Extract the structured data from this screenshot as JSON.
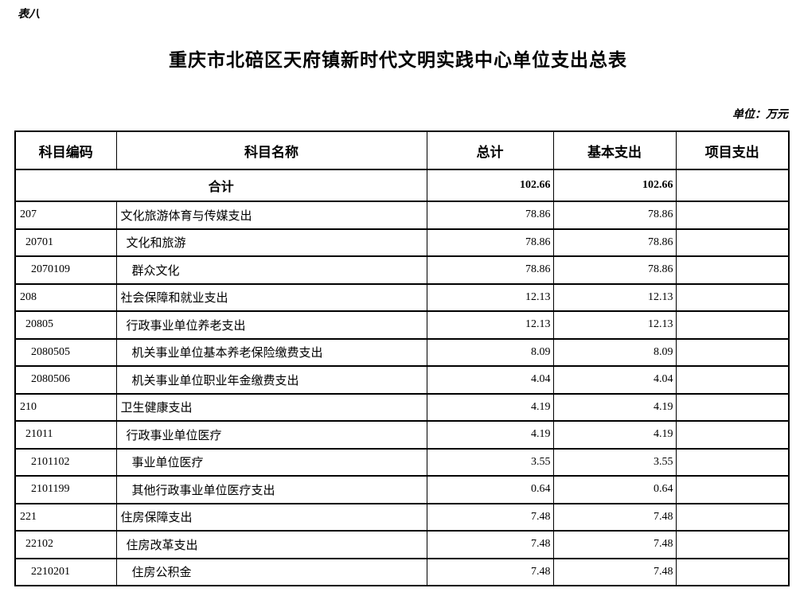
{
  "page": {
    "table_label": "表八",
    "title": "重庆市北碚区天府镇新时代文明实践中心单位支出总表",
    "unit_note": "单位：万元"
  },
  "table": {
    "columns": [
      "科目编码",
      "科目名称",
      "总计",
      "基本支出",
      "项目支出"
    ],
    "total_row": {
      "label": "合计",
      "total": "102.66",
      "basic": "102.66",
      "project": ""
    },
    "rows": [
      {
        "code": "207",
        "name": "文化旅游体育与传媒支出",
        "level": 0,
        "total": "78.86",
        "basic": "78.86",
        "project": ""
      },
      {
        "code": "20701",
        "name": "文化和旅游",
        "level": 1,
        "total": "78.86",
        "basic": "78.86",
        "project": ""
      },
      {
        "code": "2070109",
        "name": "群众文化",
        "level": 2,
        "total": "78.86",
        "basic": "78.86",
        "project": ""
      },
      {
        "code": "208",
        "name": "社会保障和就业支出",
        "level": 0,
        "total": "12.13",
        "basic": "12.13",
        "project": ""
      },
      {
        "code": "20805",
        "name": "行政事业单位养老支出",
        "level": 1,
        "total": "12.13",
        "basic": "12.13",
        "project": ""
      },
      {
        "code": "2080505",
        "name": "机关事业单位基本养老保险缴费支出",
        "level": 2,
        "total": "8.09",
        "basic": "8.09",
        "project": ""
      },
      {
        "code": "2080506",
        "name": "机关事业单位职业年金缴费支出",
        "level": 2,
        "total": "4.04",
        "basic": "4.04",
        "project": ""
      },
      {
        "code": "210",
        "name": "卫生健康支出",
        "level": 0,
        "total": "4.19",
        "basic": "4.19",
        "project": ""
      },
      {
        "code": "21011",
        "name": "行政事业单位医疗",
        "level": 1,
        "total": "4.19",
        "basic": "4.19",
        "project": ""
      },
      {
        "code": "2101102",
        "name": "事业单位医疗",
        "level": 2,
        "total": "3.55",
        "basic": "3.55",
        "project": ""
      },
      {
        "code": "2101199",
        "name": "其他行政事业单位医疗支出",
        "level": 2,
        "total": "0.64",
        "basic": "0.64",
        "project": ""
      },
      {
        "code": "221",
        "name": "住房保障支出",
        "level": 0,
        "total": "7.48",
        "basic": "7.48",
        "project": ""
      },
      {
        "code": "22102",
        "name": "住房改革支出",
        "level": 1,
        "total": "7.48",
        "basic": "7.48",
        "project": ""
      },
      {
        "code": "2210201",
        "name": "住房公积金",
        "level": 2,
        "total": "7.48",
        "basic": "7.48",
        "project": ""
      }
    ]
  }
}
